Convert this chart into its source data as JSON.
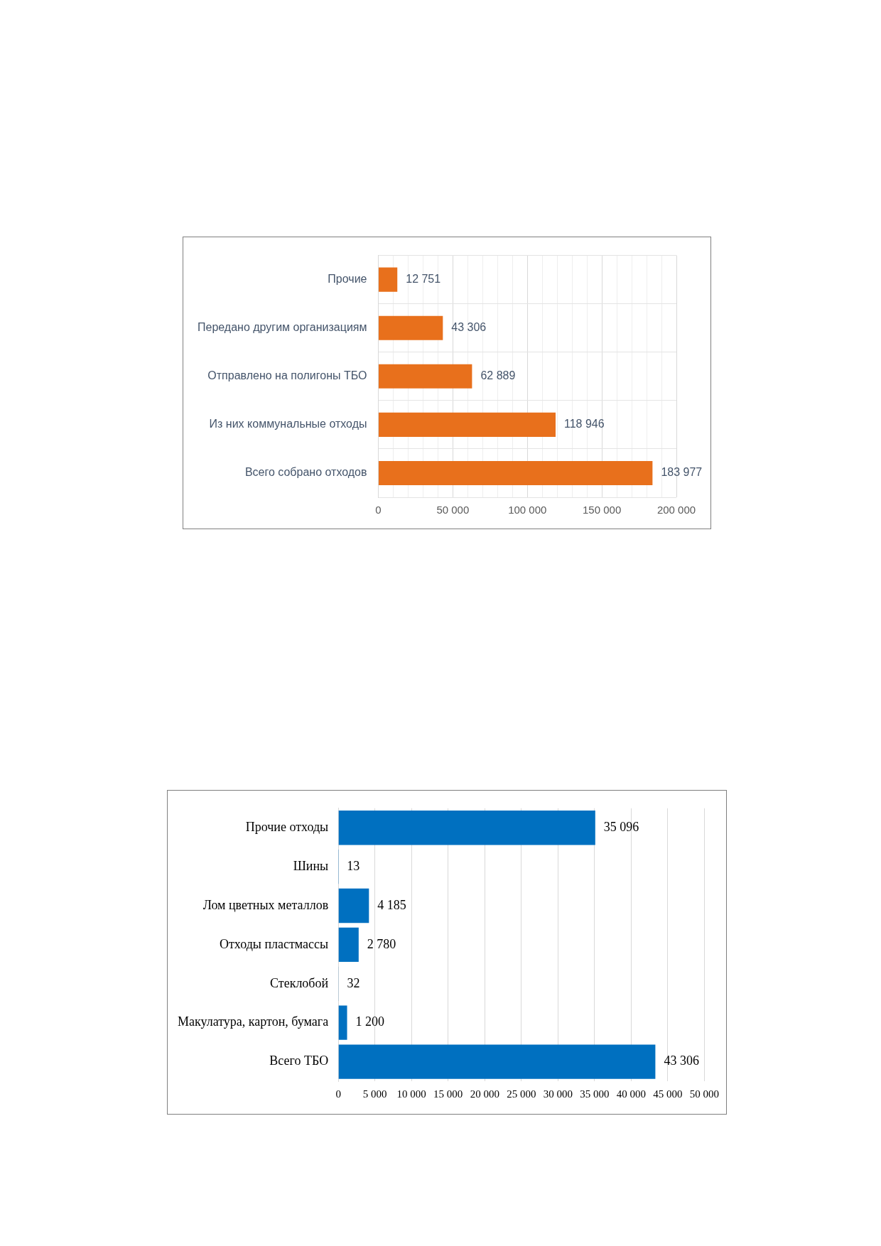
{
  "chart_data": [
    {
      "type": "bar",
      "orientation": "horizontal",
      "categories": [
        "Прочие",
        "Передано другим организациям",
        "Отправлено на полигоны ТБО",
        "Из них коммунальные отходы",
        "Всего собрано отходов"
      ],
      "values": [
        12751,
        43306,
        62889,
        118946,
        183977
      ],
      "color": "#e8701c",
      "value_labels": [
        "12 751",
        "43 306",
        "62 889",
        "118 946",
        "183 977"
      ],
      "xlim": [
        0,
        200000
      ],
      "xticks": [
        0,
        {
          "value": 10000,
          "label": null
        },
        {
          "value": 20000,
          "label": null
        },
        {
          "value": 30000,
          "label": null
        },
        {
          "value": 40000,
          "label": null
        },
        {
          "value": 50000,
          "label": "50 000"
        },
        {
          "value": 60000,
          "label": null
        },
        {
          "value": 70000,
          "label": null
        },
        {
          "value": 80000,
          "label": null
        },
        {
          "value": 90000,
          "label": null
        },
        {
          "value": 100000,
          "label": "100 000"
        },
        {
          "value": 110000,
          "label": null
        },
        {
          "value": 120000,
          "label": null
        },
        {
          "value": 130000,
          "label": null
        },
        {
          "value": 140000,
          "label": null
        },
        {
          "value": 150000,
          "label": "150 000"
        },
        {
          "value": 160000,
          "label": null
        },
        {
          "value": 170000,
          "label": null
        },
        {
          "value": 180000,
          "label": null
        },
        {
          "value": 190000,
          "label": null
        },
        {
          "value": 200000,
          "label": "200 000"
        }
      ],
      "grid": true
    },
    {
      "type": "bar",
      "orientation": "horizontal",
      "categories": [
        "Прочие отходы",
        "Шины",
        "Лом цветных металлов",
        "Отходы пластмассы",
        "Стеклобой",
        "Макулатура, картон, бумага",
        "Всего ТБО"
      ],
      "values": [
        35096,
        13,
        4185,
        2780,
        32,
        1200,
        43306
      ],
      "color": "#0070c0",
      "value_labels": [
        "35 096",
        "13",
        "4 185",
        "2 780",
        "32",
        "1 200",
        "43 306"
      ],
      "xlim": [
        0,
        50000
      ],
      "xticks": [
        0,
        {
          "value": 5000,
          "label": "5 000"
        },
        {
          "value": 10000,
          "label": "10 000"
        },
        {
          "value": 15000,
          "label": "15 000"
        },
        {
          "value": 20000,
          "label": "20 000"
        },
        {
          "value": 25000,
          "label": "25 000"
        },
        {
          "value": 30000,
          "label": "30 000"
        },
        {
          "value": 35000,
          "label": "35 000"
        },
        {
          "value": 40000,
          "label": "40 000"
        },
        {
          "value": 45000,
          "label": "45 000"
        },
        {
          "value": 50000,
          "label": "50 000"
        }
      ],
      "grid": "x"
    }
  ]
}
